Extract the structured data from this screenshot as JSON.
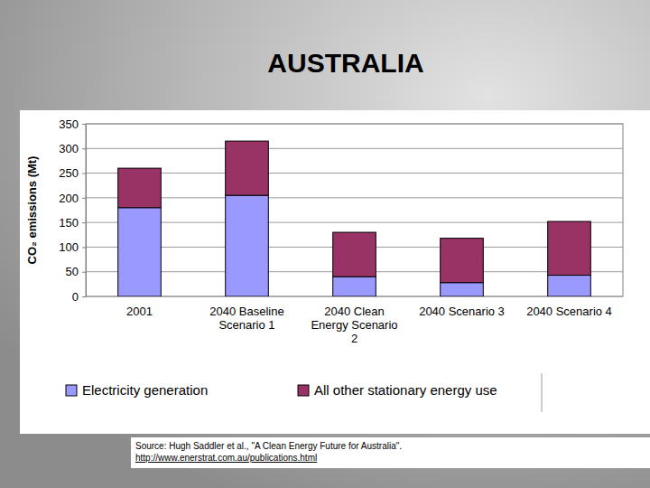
{
  "chart_data": {
    "type": "bar",
    "title": "AUSTRALIA",
    "y_label": "CO₂ emissions (Mt)",
    "categories": [
      "2001",
      "2040 Baseline Scenario 1",
      "2040 Clean Energy Scenario 2",
      "2040 Scenario 3",
      "2040 Scenario 4"
    ],
    "series": [
      {
        "name": "Electricity generation",
        "color": "#9999ff",
        "values": [
          180,
          205,
          40,
          28,
          43
        ]
      },
      {
        "name": "All other stationary energy use",
        "color": "#993366",
        "values": [
          80,
          110,
          90,
          90,
          109
        ]
      }
    ],
    "ylim": [
      0,
      350
    ],
    "yticks": [
      0,
      50,
      100,
      150,
      200,
      250,
      300,
      350
    ],
    "grid": true,
    "stacked": true,
    "legend": "bottom",
    "annotations": [
      "Source: Hugh Saddler et al., \"A Clean Energy Future for Australia\".",
      "http://www.enerstrat.com.au/publications.html"
    ]
  }
}
